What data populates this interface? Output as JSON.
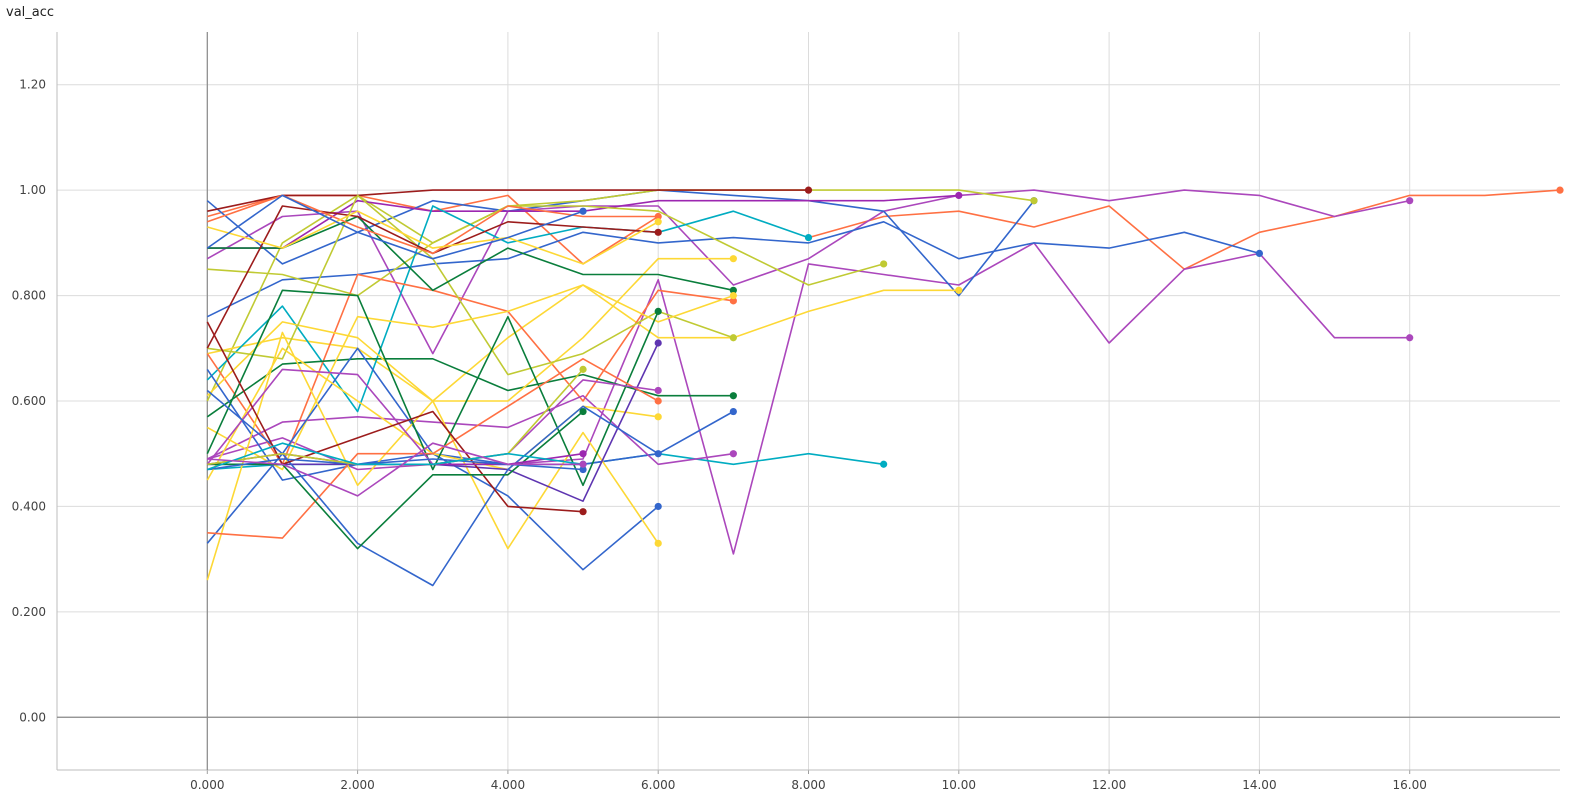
{
  "title": "val_acc",
  "chart_data": {
    "type": "line",
    "title": "val_acc",
    "xlim": [
      -2.0,
      18.0
    ],
    "ylim": [
      -0.1,
      1.3
    ],
    "x_ticks": [
      0,
      2,
      4,
      6,
      8,
      10,
      12,
      14,
      16
    ],
    "x_tick_labels": [
      "0.000",
      "2.000",
      "4.000",
      "6.000",
      "8.000",
      "10.00",
      "12.00",
      "14.00",
      "16.00"
    ],
    "y_ticks": [
      0,
      0.2,
      0.4,
      0.6,
      0.8,
      1.0,
      1.2
    ],
    "y_tick_labels": [
      "0.00",
      "0.200",
      "0.400",
      "0.600",
      "0.800",
      "1.00",
      "1.20"
    ],
    "grid": true,
    "series": [
      {
        "color": "#ff7043",
        "values": [
          0.95,
          0.99,
          0.99,
          0.96,
          0.99,
          0.86,
          0.95,
          null,
          0.91,
          0.95,
          0.96,
          0.93,
          0.97,
          0.85,
          0.92,
          0.95,
          0.99,
          0.99,
          1.0
        ]
      },
      {
        "color": "#ab47bc",
        "values": [
          0.87,
          0.95,
          0.96,
          0.69,
          0.96,
          0.97,
          0.97,
          0.82,
          0.87,
          0.96,
          0.99,
          1.0,
          0.98,
          1.0,
          0.99,
          0.95,
          0.98
        ]
      },
      {
        "color": "#ab47bc",
        "values": [
          0.49,
          0.53,
          0.47,
          0.48,
          0.48,
          0.49,
          0.83,
          0.31,
          0.86,
          0.84,
          0.82,
          0.9,
          0.71,
          0.85,
          0.88,
          0.72,
          0.72
        ]
      },
      {
        "color": "#3366cc",
        "values": [
          0.76,
          0.83,
          0.84,
          0.86,
          0.87,
          0.92,
          0.9,
          0.91,
          0.9,
          0.94,
          0.87,
          0.9,
          0.89,
          0.92,
          0.88
        ]
      },
      {
        "color": "#3366cc",
        "values": [
          0.98,
          0.86,
          0.92,
          0.98,
          0.96,
          0.98,
          1.0,
          0.99,
          0.98,
          0.96,
          0.8,
          0.98
        ]
      },
      {
        "color": "#c0ca33",
        "values": [
          0.6,
          0.9,
          0.99,
          0.9,
          0.97,
          0.98,
          1.0,
          1.0,
          1.0,
          1.0,
          1.0,
          0.98
        ]
      },
      {
        "color": "#9c27b0",
        "values": [
          0.89,
          0.89,
          0.98,
          0.96,
          0.96,
          0.96,
          0.98,
          0.98,
          0.98,
          0.98,
          0.99
        ]
      },
      {
        "color": "#c0ca33",
        "values": [
          0.85,
          0.84,
          0.8,
          0.9,
          0.97,
          0.97,
          0.96,
          0.89,
          0.82,
          0.86
        ]
      },
      {
        "color": "#00acc1",
        "values": [
          0.47,
          0.48,
          0.48,
          0.48,
          0.48,
          0.48,
          0.5,
          0.48,
          0.5,
          0.48
        ]
      },
      {
        "color": "#fdd835",
        "values": [
          0.69,
          0.72,
          0.7,
          0.6,
          0.72,
          0.82,
          0.72,
          0.72,
          0.77,
          0.81,
          0.81
        ]
      },
      {
        "color": "#9c1c1c",
        "values": [
          0.96,
          0.99,
          0.99,
          1.0,
          1.0,
          1.0,
          1.0,
          1.0,
          1.0
        ]
      },
      {
        "color": "#00acc1",
        "values": [
          0.64,
          0.78,
          0.58,
          0.97,
          0.9,
          0.93,
          0.92,
          0.96,
          0.91
        ]
      },
      {
        "color": "#ff7043",
        "values": [
          0.69,
          0.48,
          0.84,
          0.81,
          0.77,
          0.6,
          0.81,
          0.79
        ]
      },
      {
        "color": "#0a7e3c",
        "values": [
          0.57,
          0.67,
          0.68,
          0.68,
          0.62,
          0.65,
          0.61,
          0.61
        ]
      },
      {
        "color": "#fdd835",
        "values": [
          0.61,
          0.75,
          0.72,
          0.6,
          0.6,
          0.72,
          0.87,
          0.87
        ]
      },
      {
        "color": "#3366cc",
        "values": [
          0.66,
          0.45,
          0.48,
          0.5,
          0.48,
          0.48,
          0.5,
          0.58
        ]
      },
      {
        "color": "#ab47bc",
        "values": [
          0.49,
          0.56,
          0.57,
          0.56,
          0.55,
          0.61,
          0.48,
          0.5
        ]
      },
      {
        "color": "#c0ca33",
        "values": [
          0.7,
          0.68,
          0.99,
          0.87,
          0.65,
          0.69,
          0.77,
          0.72
        ]
      },
      {
        "color": "#0a7e3c",
        "values": [
          0.89,
          0.89,
          0.95,
          0.81,
          0.89,
          0.84,
          0.84,
          0.81
        ]
      },
      {
        "color": "#fdd835",
        "values": [
          0.55,
          0.47,
          0.76,
          0.74,
          0.77,
          0.82,
          0.75,
          0.8
        ]
      },
      {
        "color": "#3366cc",
        "values": [
          0.33,
          0.5,
          0.7,
          0.5,
          0.42,
          0.28,
          0.4
        ]
      },
      {
        "color": "#fdd835",
        "values": [
          0.26,
          0.73,
          0.44,
          0.6,
          0.32,
          0.54,
          0.33
        ]
      },
      {
        "color": "#fdd835",
        "values": [
          0.45,
          0.7,
          0.6,
          0.5,
          0.47,
          0.59,
          0.57
        ]
      },
      {
        "color": "#9c1c1c",
        "values": [
          0.7,
          0.97,
          0.95,
          0.88,
          0.94,
          0.93,
          0.92
        ]
      },
      {
        "color": "#5e35b1",
        "values": [
          0.48,
          0.48,
          0.48,
          0.48,
          0.47,
          0.41,
          0.71
        ]
      },
      {
        "color": "#0a7e3c",
        "values": [
          0.5,
          0.81,
          0.8,
          0.47,
          0.76,
          0.44,
          0.77
        ]
      },
      {
        "color": "#ff7043",
        "values": [
          0.35,
          0.34,
          0.5,
          0.5,
          0.59,
          0.68,
          0.6
        ]
      },
      {
        "color": "#ab47bc",
        "values": [
          0.48,
          0.66,
          0.65,
          0.48,
          0.5,
          0.64,
          0.62
        ]
      },
      {
        "color": "#ff7043",
        "values": [
          0.94,
          0.99,
          0.93,
          0.88,
          0.97,
          0.95,
          0.95
        ]
      },
      {
        "color": "#fdd835",
        "values": [
          0.93,
          0.89,
          0.96,
          0.89,
          0.91,
          0.86,
          0.94
        ]
      },
      {
        "color": "#3366cc",
        "values": [
          0.62,
          0.5,
          0.33,
          0.25,
          0.47,
          0.59,
          0.5
        ]
      },
      {
        "color": "#9c1c1c",
        "values": [
          0.75,
          0.48,
          0.53,
          0.58,
          0.4,
          0.39
        ]
      },
      {
        "color": "#0a7e3c",
        "values": [
          0.48,
          0.48,
          0.32,
          0.46,
          0.46,
          0.58
        ]
      },
      {
        "color": "#9c27b0",
        "values": [
          0.48,
          0.5,
          0.48,
          0.48,
          0.48,
          0.5
        ]
      },
      {
        "color": "#3366cc",
        "values": [
          0.47,
          0.49,
          0.48,
          0.49,
          0.48,
          0.47
        ]
      },
      {
        "color": "#c0ca33",
        "values": [
          0.48,
          0.5,
          0.48,
          0.48,
          0.5,
          0.66
        ]
      },
      {
        "color": "#00acc1",
        "values": [
          0.47,
          0.52,
          0.48,
          0.48,
          0.5,
          0.48
        ]
      },
      {
        "color": "#ab47bc",
        "values": [
          0.49,
          0.48,
          0.42,
          0.52,
          0.48,
          0.48
        ]
      },
      {
        "color": "#3366cc",
        "values": [
          0.89,
          0.99,
          0.92,
          0.87,
          0.91,
          0.96
        ]
      }
    ]
  }
}
